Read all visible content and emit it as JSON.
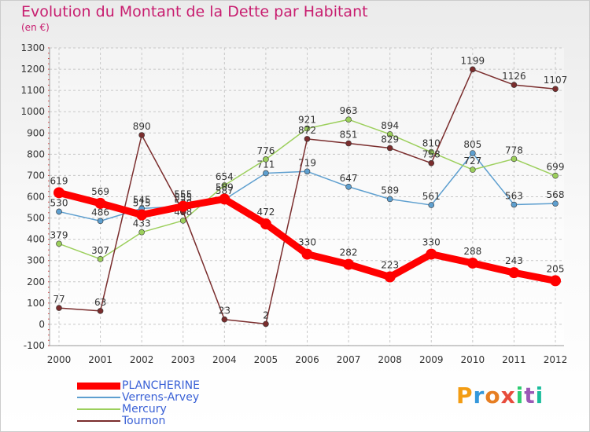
{
  "title": "Evolution du Montant de la Dette par Habitant",
  "subtitle": "(en €)",
  "logo": {
    "text": "Proxiti",
    "colors": [
      "#f39c12",
      "#3498db",
      "#e67e22",
      "#e74c3c",
      "#2ecc71",
      "#9b59b6",
      "#1abc9c"
    ]
  },
  "chart_data": {
    "type": "line",
    "title": "Evolution du Montant de la Dette par Habitant",
    "subtitle": "(en €)",
    "categories": [
      "2000",
      "2001",
      "2002",
      "2003",
      "2004",
      "2005",
      "2006",
      "2007",
      "2008",
      "2009",
      "2010",
      "2011",
      "2012"
    ],
    "ylim": [
      -100,
      1300
    ],
    "yticks": [
      "-100",
      "0",
      "100",
      "200",
      "300",
      "400",
      "500",
      "600",
      "700",
      "800",
      "900",
      "1000",
      "1100",
      "1200",
      "1300"
    ],
    "grid": true,
    "legend_position": "bottom-left",
    "series": [
      {
        "name": "PLANCHERINE",
        "color": "#ff0000",
        "highlight": true,
        "values": [
          619,
          569,
          515,
          555,
          589,
          472,
          330,
          282,
          223,
          330,
          288,
          243,
          205
        ],
        "labels": [
          "619",
          "569",
          "515",
          "555",
          "589",
          "472",
          "330",
          "282",
          "223",
          "330",
          "288",
          "243",
          "205"
        ]
      },
      {
        "name": "Verrens-Arvey",
        "color": "#5e9fcf",
        "highlight": false,
        "values": [
          530,
          486,
          545,
          555,
          587,
          711,
          719,
          647,
          589,
          561,
          805,
          563,
          568
        ],
        "labels": [
          "530",
          "486",
          "545",
          "555",
          "587",
          "711",
          "719",
          "647",
          "589",
          "561",
          "805",
          "563",
          "568"
        ]
      },
      {
        "name": "Mercury",
        "color": "#9ccf5c",
        "highlight": false,
        "values": [
          379,
          307,
          433,
          488,
          654,
          776,
          921,
          963,
          894,
          810,
          727,
          778,
          699
        ],
        "labels": [
          "379",
          "307",
          "433",
          "488",
          "654",
          "776",
          "921",
          "963",
          "894",
          "810",
          "727",
          "778",
          "699"
        ]
      },
      {
        "name": "Tournon",
        "color": "#7a2d2d",
        "highlight": false,
        "values": [
          77,
          63,
          890,
          530,
          23,
          2,
          872,
          851,
          829,
          758,
          1199,
          1126,
          1107
        ],
        "labels": [
          "77",
          "63",
          "890",
          "530",
          "23",
          "2",
          "872",
          "851",
          "829",
          "758",
          "1199",
          "1126",
          "1107"
        ]
      }
    ]
  }
}
